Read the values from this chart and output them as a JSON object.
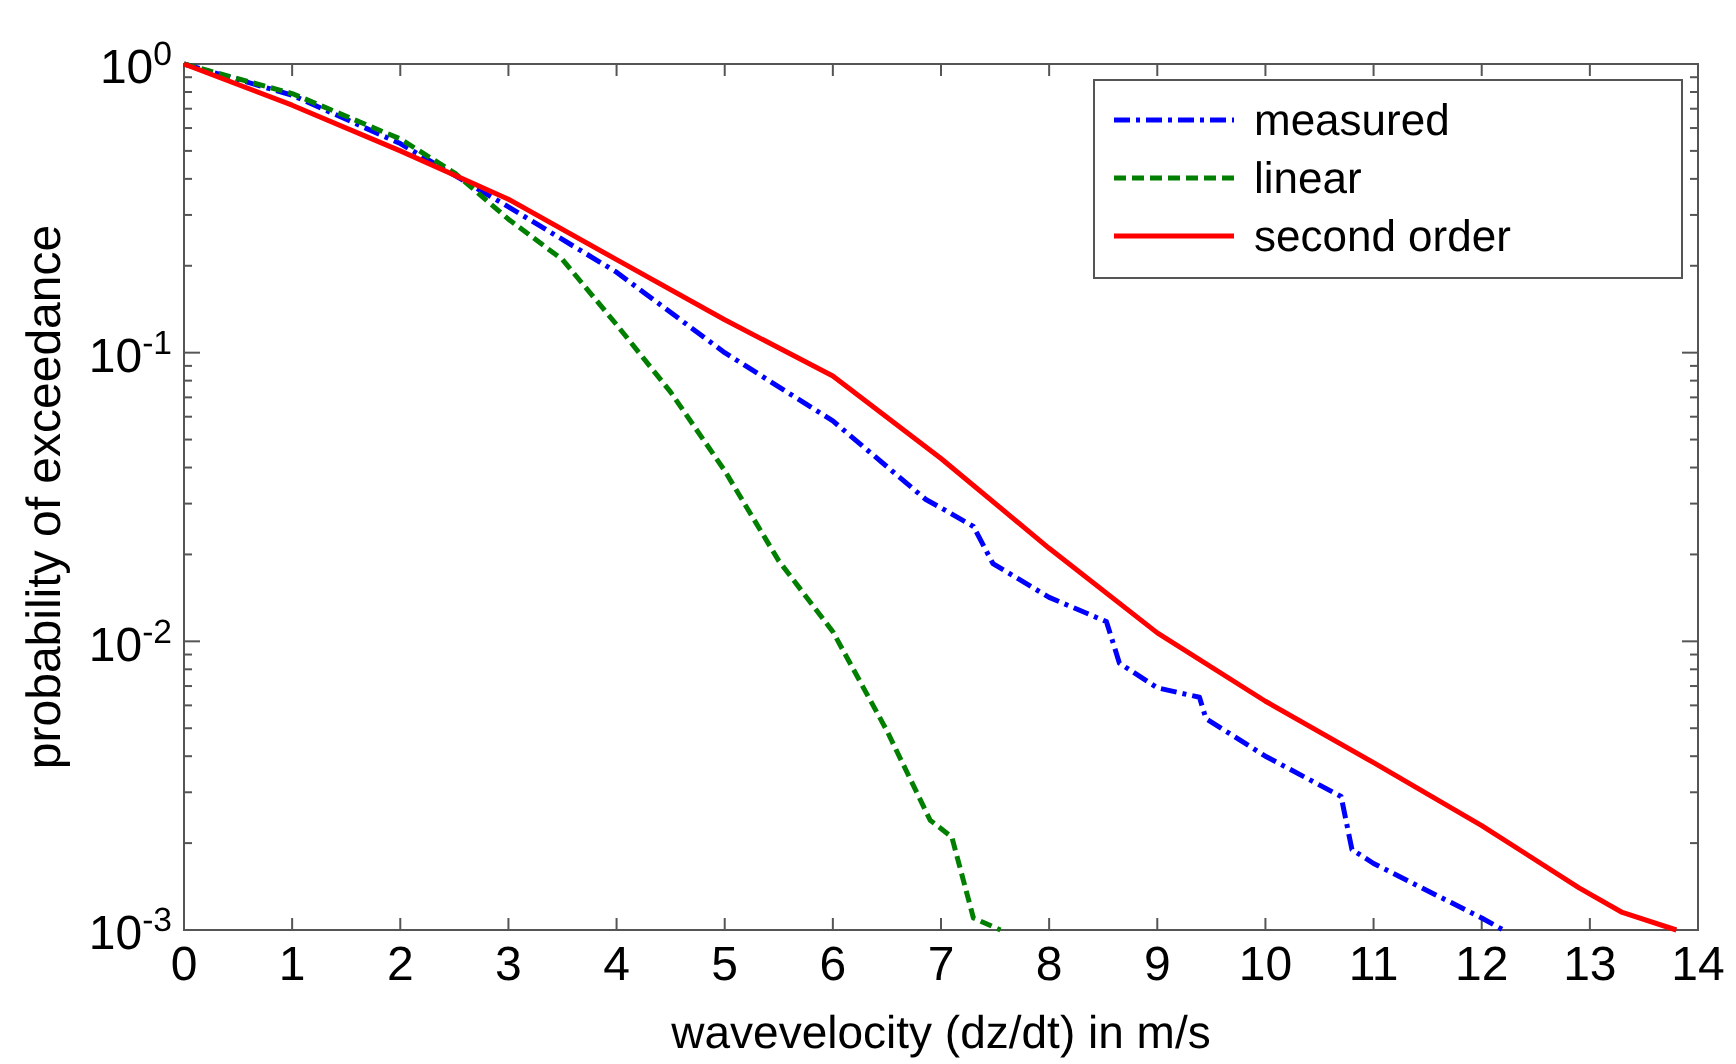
{
  "chart_data": {
    "type": "line",
    "xlabel": "wavevelocity (dz/dt) in m/s",
    "ylabel": "probability of exceedance",
    "log": "y",
    "grid": false,
    "legend": "top right",
    "xlim": [
      0,
      14
    ],
    "ylim": [
      0.001,
      1
    ],
    "xticks": [
      0,
      1,
      2,
      3,
      4,
      5,
      6,
      7,
      8,
      9,
      10,
      11,
      12,
      13,
      14
    ],
    "yticks": [
      {
        "value": 0.001,
        "label": "10$^{-3}$"
      },
      {
        "value": 0.002,
        "label": null
      },
      {
        "value": 0.003,
        "label": null
      },
      {
        "value": 0.004,
        "label": null
      },
      {
        "value": 0.005,
        "label": null
      },
      {
        "value": 0.006,
        "label": null
      },
      {
        "value": 0.007,
        "label": null
      },
      {
        "value": 0.008,
        "label": null
      },
      {
        "value": 0.009,
        "label": null
      },
      {
        "value": 0.01,
        "label": "10$^{-2}$"
      },
      {
        "value": 0.02,
        "label": null
      },
      {
        "value": 0.03,
        "label": null
      },
      {
        "value": 0.04,
        "label": null
      },
      {
        "value": 0.05,
        "label": null
      },
      {
        "value": 0.06,
        "label": null
      },
      {
        "value": 0.07,
        "label": null
      },
      {
        "value": 0.08,
        "label": null
      },
      {
        "value": 0.09,
        "label": null
      },
      {
        "value": 0.1,
        "label": "10$^{-1}$"
      },
      {
        "value": 0.2,
        "label": null
      },
      {
        "value": 0.3,
        "label": null
      },
      {
        "value": 0.4,
        "label": null
      },
      {
        "value": 0.5,
        "label": null
      },
      {
        "value": 0.6,
        "label": null
      },
      {
        "value": 0.7,
        "label": null
      },
      {
        "value": 0.8,
        "label": null
      },
      {
        "value": 0.9,
        "label": null
      },
      {
        "value": 1,
        "label": "10$^{0}$"
      }
    ],
    "series": [
      {
        "name": "measured",
        "color": "#0000ff",
        "line_style": "dashdot",
        "x": [
          0,
          1,
          2,
          3,
          4,
          5,
          6,
          6.86,
          7,
          7.3,
          7.48,
          8,
          8.53,
          8.65,
          9,
          9.39,
          9.45,
          10,
          10.7,
          10.8,
          11,
          12,
          12.2
        ],
        "values": [
          1,
          0.78,
          0.53,
          0.32,
          0.19,
          0.1,
          0.058,
          0.031,
          0.029,
          0.025,
          0.0186,
          0.0142,
          0.0117,
          0.0084,
          0.0069,
          0.0064,
          0.0054,
          0.004,
          0.0029,
          0.0019,
          0.0017,
          0.0011,
          0.001
        ]
      },
      {
        "name": "linear",
        "color": "#007f00",
        "line_style": "dashed",
        "x": [
          0,
          1,
          2,
          2.5,
          3,
          3.5,
          4,
          4.5,
          5,
          5.5,
          6,
          6.5,
          6.9,
          7.1,
          7.3,
          7.55
        ],
        "values": [
          1,
          0.79,
          0.55,
          0.42,
          0.29,
          0.21,
          0.125,
          0.073,
          0.039,
          0.019,
          0.0108,
          0.0049,
          0.0024,
          0.0021,
          0.0011,
          0.001
        ]
      },
      {
        "name": "second order",
        "color": "#ff0000",
        "line_style": "solid",
        "x": [
          0,
          1,
          2,
          3,
          4,
          5,
          6,
          7,
          8,
          9,
          10,
          11,
          12,
          12.9,
          13.3,
          13.8
        ],
        "values": [
          1,
          0.72,
          0.5,
          0.34,
          0.21,
          0.13,
          0.083,
          0.043,
          0.021,
          0.0107,
          0.0062,
          0.0038,
          0.0023,
          0.0014,
          0.00115,
          0.001
        ]
      }
    ]
  }
}
